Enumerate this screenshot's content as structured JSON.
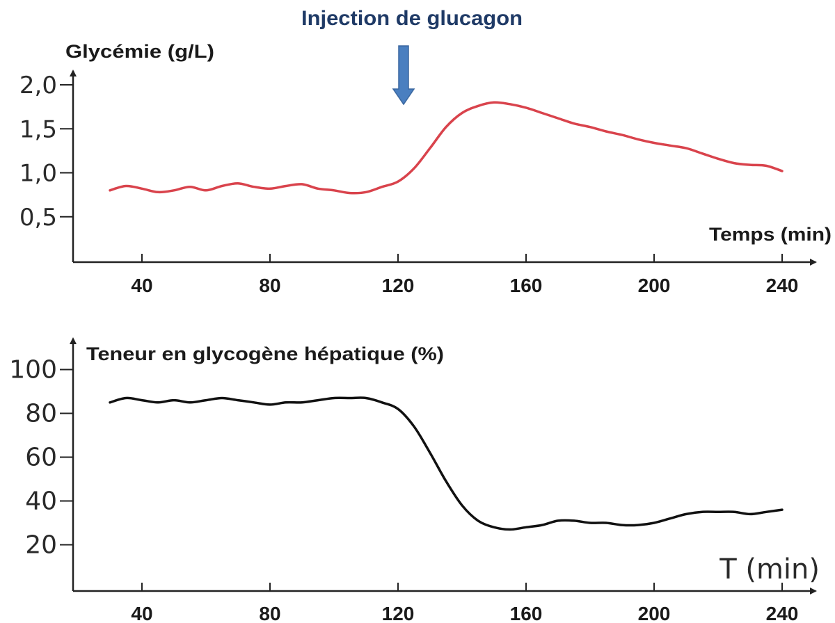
{
  "annotation": {
    "text": "Injection de glucagon",
    "x": 120,
    "color": "#1f3a66",
    "arrow_color": "#4a7fc0"
  },
  "chart_data": [
    {
      "type": "line",
      "ylabel": "Glycémie (g/L)",
      "xlabel": "Temps (min)",
      "x_ticks": [
        40,
        80,
        120,
        160,
        200,
        240
      ],
      "y_ticks": [
        {
          "value": 0.5,
          "label": "0,5"
        },
        {
          "value": 1.0,
          "label": "1,0"
        },
        {
          "value": 1.5,
          "label": "1,5"
        },
        {
          "value": 2.0,
          "label": "2,0"
        }
      ],
      "xlim": [
        20,
        250
      ],
      "ylim": [
        0,
        2.2
      ],
      "grid": false,
      "series": [
        {
          "color": "#d9434c",
          "x": [
            30,
            35,
            40,
            45,
            50,
            55,
            60,
            65,
            70,
            75,
            80,
            85,
            90,
            95,
            100,
            105,
            110,
            115,
            120,
            125,
            130,
            135,
            140,
            145,
            150,
            155,
            160,
            165,
            170,
            175,
            180,
            185,
            190,
            195,
            200,
            205,
            210,
            215,
            220,
            225,
            230,
            235,
            240
          ],
          "y": [
            0.8,
            0.85,
            0.82,
            0.78,
            0.8,
            0.84,
            0.8,
            0.85,
            0.88,
            0.84,
            0.82,
            0.85,
            0.87,
            0.82,
            0.8,
            0.77,
            0.78,
            0.84,
            0.9,
            1.05,
            1.28,
            1.52,
            1.68,
            1.76,
            1.8,
            1.78,
            1.74,
            1.68,
            1.62,
            1.56,
            1.52,
            1.47,
            1.43,
            1.38,
            1.34,
            1.31,
            1.28,
            1.22,
            1.16,
            1.11,
            1.09,
            1.08,
            1.02
          ]
        }
      ]
    },
    {
      "type": "line",
      "ylabel": "Teneur en glycogène hépatique (%)",
      "xlabel": "T (min)",
      "x_ticks": [
        40,
        80,
        120,
        160,
        200,
        240
      ],
      "y_ticks": [
        {
          "value": 20,
          "label": "20"
        },
        {
          "value": 40,
          "label": "40"
        },
        {
          "value": 60,
          "label": "60"
        },
        {
          "value": 80,
          "label": "80"
        },
        {
          "value": 100,
          "label": "100"
        }
      ],
      "xlim": [
        20,
        250
      ],
      "ylim": [
        0,
        110
      ],
      "grid": false,
      "series": [
        {
          "color": "#111111",
          "x": [
            30,
            35,
            40,
            45,
            50,
            55,
            60,
            65,
            70,
            75,
            80,
            85,
            90,
            95,
            100,
            105,
            110,
            115,
            120,
            125,
            130,
            135,
            140,
            145,
            150,
            155,
            160,
            165,
            170,
            175,
            180,
            185,
            190,
            195,
            200,
            205,
            210,
            215,
            220,
            225,
            230,
            235,
            240
          ],
          "y": [
            85,
            87,
            86,
            85,
            86,
            85,
            86,
            87,
            86,
            85,
            84,
            85,
            85,
            86,
            87,
            87,
            87,
            85,
            82,
            74,
            62,
            49,
            38,
            31,
            28,
            27,
            28,
            29,
            31,
            31,
            30,
            30,
            29,
            29,
            30,
            32,
            34,
            35,
            35,
            35,
            34,
            35,
            36
          ]
        }
      ]
    }
  ]
}
